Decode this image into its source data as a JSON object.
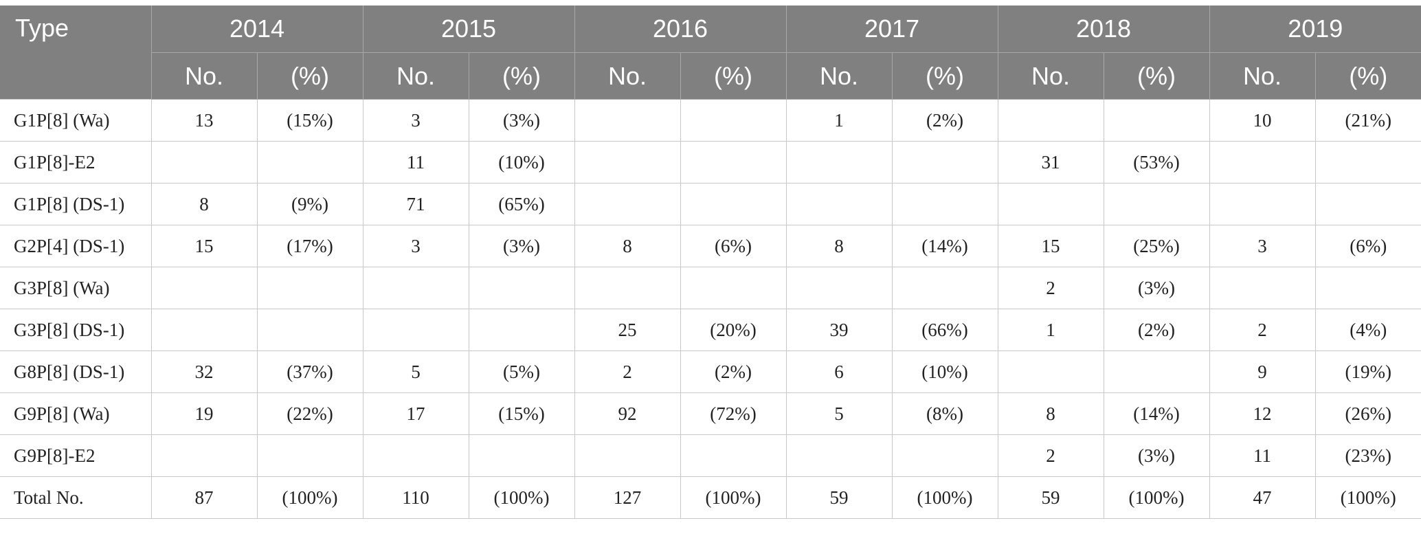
{
  "header": {
    "type_label": "Type",
    "years": [
      "2014",
      "2015",
      "2016",
      "2017",
      "2018",
      "2019"
    ],
    "no_label": "No.",
    "pct_label": "(%)"
  },
  "rows": [
    {
      "type": "G1P[8] (Wa)",
      "cells": [
        "13",
        "(15%)",
        "3",
        "(3%)",
        "",
        "",
        "1",
        "(2%)",
        "",
        "",
        "10",
        "(21%)"
      ]
    },
    {
      "type": "G1P[8]-E2",
      "cells": [
        "",
        "",
        "11",
        "(10%)",
        "",
        "",
        "",
        "",
        "31",
        "(53%)",
        "",
        ""
      ]
    },
    {
      "type": "G1P[8] (DS-1)",
      "cells": [
        "8",
        "(9%)",
        "71",
        "(65%)",
        "",
        "",
        "",
        "",
        "",
        "",
        "",
        ""
      ]
    },
    {
      "type": "G2P[4] (DS-1)",
      "cells": [
        "15",
        "(17%)",
        "3",
        "(3%)",
        "8",
        "(6%)",
        "8",
        "(14%)",
        "15",
        "(25%)",
        "3",
        "(6%)"
      ]
    },
    {
      "type": "G3P[8] (Wa)",
      "cells": [
        "",
        "",
        "",
        "",
        "",
        "",
        "",
        "",
        "2",
        "(3%)",
        "",
        ""
      ]
    },
    {
      "type": "G3P[8] (DS-1)",
      "cells": [
        "",
        "",
        "",
        "",
        "25",
        "(20%)",
        "39",
        "(66%)",
        "1",
        "(2%)",
        "2",
        "(4%)"
      ]
    },
    {
      "type": "G8P[8] (DS-1)",
      "cells": [
        "32",
        "(37%)",
        "5",
        "(5%)",
        "2",
        "(2%)",
        "6",
        "(10%)",
        "",
        "",
        "9",
        "(19%)"
      ]
    },
    {
      "type": "G9P[8] (Wa)",
      "cells": [
        "19",
        "(22%)",
        "17",
        "(15%)",
        "92",
        "(72%)",
        "5",
        "(8%)",
        "8",
        "(14%)",
        "12",
        "(26%)"
      ]
    },
    {
      "type": "G9P[8]-E2",
      "cells": [
        "",
        "",
        "",
        "",
        "",
        "",
        "",
        "",
        "2",
        "(3%)",
        "11",
        "(23%)"
      ]
    },
    {
      "type": "Total No.",
      "cells": [
        "87",
        "(100%)",
        "110",
        "(100%)",
        "127",
        "(100%)",
        "59",
        "(100%)",
        "59",
        "(100%)",
        "47",
        "(100%)"
      ]
    }
  ]
}
